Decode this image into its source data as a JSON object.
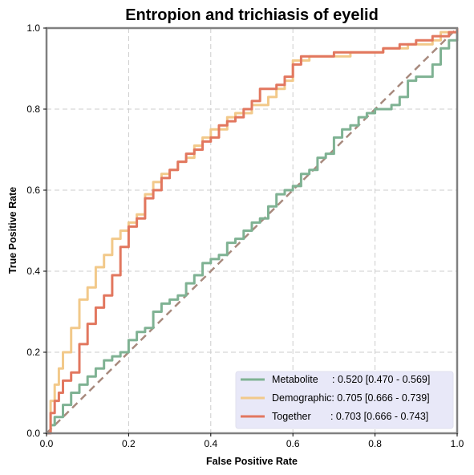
{
  "chart_data": {
    "type": "line",
    "title": "Entropion and trichiasis of eyelid",
    "xlabel": "False Positive Rate",
    "ylabel": "True Positive Rate",
    "xlim": [
      0,
      1
    ],
    "ylim": [
      0,
      1
    ],
    "xticks": [
      "0.0",
      "0.2",
      "0.4",
      "0.6",
      "0.8",
      "1.0"
    ],
    "yticks": [
      "0.0",
      "0.2",
      "0.4",
      "0.6",
      "0.8",
      "1.0"
    ],
    "grid": true,
    "legend_position": "lower-right",
    "diagonal_color": "#a88a7e",
    "series": [
      {
        "name": "Metabolite",
        "label": "Metabolite     : 0.520 [0.470 - 0.569]",
        "color": "#7fb293",
        "x": [
          0,
          0.01,
          0.02,
          0.04,
          0.06,
          0.08,
          0.1,
          0.12,
          0.14,
          0.16,
          0.18,
          0.2,
          0.22,
          0.24,
          0.26,
          0.28,
          0.3,
          0.32,
          0.34,
          0.36,
          0.38,
          0.4,
          0.42,
          0.44,
          0.46,
          0.48,
          0.5,
          0.52,
          0.54,
          0.56,
          0.58,
          0.6,
          0.62,
          0.64,
          0.66,
          0.68,
          0.7,
          0.72,
          0.74,
          0.76,
          0.78,
          0.8,
          0.82,
          0.84,
          0.86,
          0.88,
          0.9,
          0.92,
          0.94,
          0.96,
          0.98,
          1.0
        ],
        "y": [
          0,
          0.02,
          0.04,
          0.07,
          0.1,
          0.12,
          0.14,
          0.16,
          0.18,
          0.19,
          0.2,
          0.23,
          0.25,
          0.26,
          0.3,
          0.32,
          0.33,
          0.34,
          0.37,
          0.39,
          0.42,
          0.43,
          0.44,
          0.47,
          0.48,
          0.5,
          0.52,
          0.53,
          0.56,
          0.59,
          0.6,
          0.61,
          0.64,
          0.65,
          0.68,
          0.69,
          0.73,
          0.75,
          0.76,
          0.78,
          0.79,
          0.8,
          0.8,
          0.81,
          0.83,
          0.87,
          0.88,
          0.88,
          0.91,
          0.95,
          0.97,
          1.0
        ]
      },
      {
        "name": "Demographic",
        "label": "Demographic: 0.705 [0.666 - 0.739]",
        "color": "#f2c98a",
        "x": [
          0,
          0.01,
          0.02,
          0.03,
          0.04,
          0.06,
          0.08,
          0.1,
          0.12,
          0.14,
          0.16,
          0.18,
          0.2,
          0.22,
          0.24,
          0.26,
          0.28,
          0.3,
          0.32,
          0.34,
          0.36,
          0.38,
          0.4,
          0.42,
          0.44,
          0.46,
          0.48,
          0.5,
          0.52,
          0.54,
          0.56,
          0.58,
          0.6,
          0.62,
          0.64,
          0.66,
          0.68,
          0.7,
          0.72,
          0.74,
          0.76,
          0.78,
          0.8,
          0.82,
          0.84,
          0.86,
          0.88,
          0.9,
          0.92,
          0.94,
          0.96,
          0.98,
          1.0
        ],
        "y": [
          0,
          0.08,
          0.12,
          0.16,
          0.2,
          0.26,
          0.33,
          0.36,
          0.41,
          0.44,
          0.48,
          0.5,
          0.52,
          0.54,
          0.59,
          0.62,
          0.64,
          0.65,
          0.67,
          0.68,
          0.71,
          0.73,
          0.75,
          0.75,
          0.78,
          0.79,
          0.79,
          0.81,
          0.81,
          0.83,
          0.85,
          0.87,
          0.92,
          0.92,
          0.93,
          0.93,
          0.93,
          0.93,
          0.93,
          0.94,
          0.94,
          0.94,
          0.94,
          0.95,
          0.95,
          0.95,
          0.96,
          0.96,
          0.96,
          0.97,
          0.99,
          0.99,
          1.0
        ]
      },
      {
        "name": "Together",
        "label": "Together       : 0.703 [0.666 - 0.743]",
        "color": "#e2775f",
        "x": [
          0,
          0.01,
          0.02,
          0.03,
          0.04,
          0.06,
          0.08,
          0.1,
          0.12,
          0.14,
          0.16,
          0.18,
          0.2,
          0.22,
          0.24,
          0.26,
          0.28,
          0.3,
          0.32,
          0.34,
          0.36,
          0.38,
          0.4,
          0.42,
          0.44,
          0.46,
          0.48,
          0.5,
          0.52,
          0.54,
          0.56,
          0.58,
          0.6,
          0.62,
          0.64,
          0.66,
          0.68,
          0.7,
          0.72,
          0.74,
          0.76,
          0.78,
          0.8,
          0.82,
          0.84,
          0.86,
          0.88,
          0.9,
          0.92,
          0.94,
          0.96,
          0.98,
          1.0
        ],
        "y": [
          0,
          0.05,
          0.08,
          0.1,
          0.13,
          0.15,
          0.22,
          0.27,
          0.31,
          0.34,
          0.39,
          0.46,
          0.51,
          0.53,
          0.58,
          0.6,
          0.63,
          0.65,
          0.67,
          0.69,
          0.7,
          0.72,
          0.73,
          0.76,
          0.77,
          0.78,
          0.8,
          0.82,
          0.85,
          0.85,
          0.86,
          0.88,
          0.91,
          0.93,
          0.93,
          0.93,
          0.93,
          0.94,
          0.94,
          0.94,
          0.94,
          0.94,
          0.94,
          0.95,
          0.95,
          0.96,
          0.96,
          0.97,
          0.97,
          0.98,
          0.98,
          0.99,
          1.0
        ]
      }
    ]
  }
}
